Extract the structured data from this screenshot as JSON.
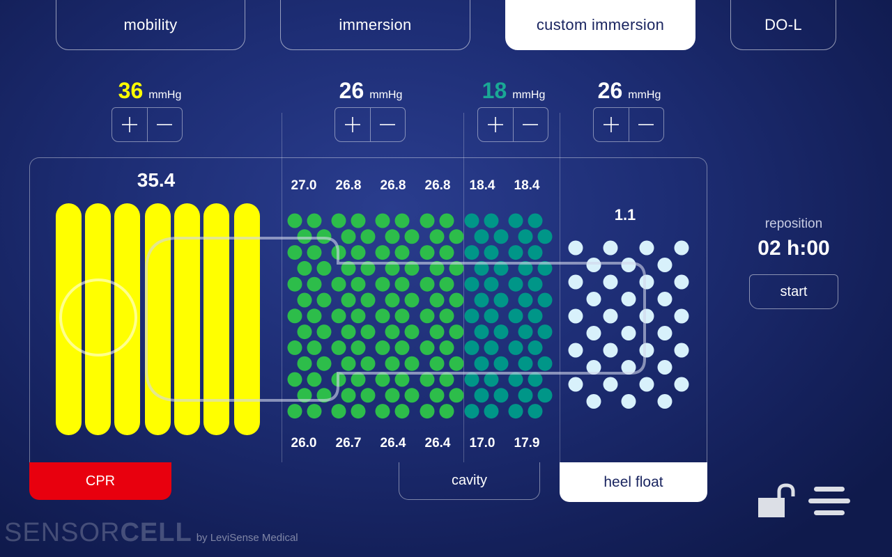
{
  "tabs": [
    {
      "label": "mobility",
      "active": false
    },
    {
      "label": "immersion",
      "active": false
    },
    {
      "label": "custom immersion",
      "active": true
    },
    {
      "label": "DO-L",
      "active": false
    }
  ],
  "zones": {
    "cpr": {
      "set_value": "36",
      "unit": "mmHg",
      "reading": "35.4",
      "color": "#ffff00",
      "button_label": "CPR",
      "button_color": "#e8000e"
    },
    "torso": {
      "set_value": "26",
      "unit": "mmHg",
      "top_readings": [
        "27.0",
        "26.8",
        "26.8",
        "26.8"
      ],
      "bottom_readings": [
        "26.0",
        "26.7",
        "26.4",
        "26.4"
      ],
      "color": "#2dbd4a"
    },
    "cavity": {
      "set_value": "18",
      "unit": "mmHg",
      "top_readings": [
        "18.4",
        "18.4"
      ],
      "bottom_readings": [
        "17.0",
        "17.9"
      ],
      "color": "#009688",
      "value_color": "#1aa895",
      "button_label": "cavity"
    },
    "heel": {
      "set_value": "26",
      "unit": "mmHg",
      "reading": "1.1",
      "color": "#d8f1fb",
      "button_label": "heel float"
    }
  },
  "reposition": {
    "label": "reposition",
    "hours": "02",
    "h_unit": "h",
    "minutes": "00",
    "start_label": "start"
  },
  "brand": {
    "light": "SENSOR",
    "bold": "CELL",
    "by": "by LeviSense Medical"
  },
  "icons": {
    "lock": "unlock-icon",
    "menu": "hamburger-menu-icon"
  }
}
